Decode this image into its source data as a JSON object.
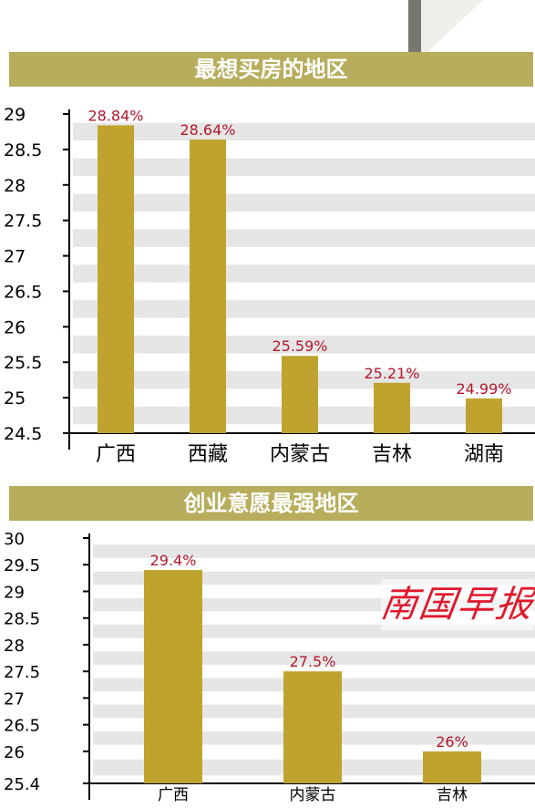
{
  "chart_data": [
    {
      "type": "bar",
      "title": "最想买房的地区",
      "categories": [
        "广西",
        "西藏",
        "内蒙古",
        "吉林",
        "湖南"
      ],
      "values": [
        28.84,
        28.64,
        25.59,
        25.21,
        24.99
      ],
      "value_labels": [
        "28.84%",
        "28.64%",
        "25.59%",
        "25.21%",
        "24.99%"
      ],
      "ylim": [
        24.5,
        29
      ],
      "yticks": [
        "24.5",
        "25",
        "25.5",
        "26",
        "26.5",
        "27",
        "27.5",
        "28",
        "28.5",
        "29"
      ],
      "grid": true,
      "bar_color": "#bfa32e",
      "label_color": "#b0182e"
    },
    {
      "type": "bar",
      "title": "创业意愿最强地区",
      "categories": [
        "广西",
        "内蒙古",
        "吉林"
      ],
      "values": [
        29.4,
        27.5,
        26
      ],
      "value_labels": [
        "29.4%",
        "27.5%",
        "26%"
      ],
      "ylim": [
        25.4,
        30
      ],
      "yticks": [
        "25.4",
        "26",
        "26.5",
        "27",
        "27.5",
        "28",
        "28.5",
        "29",
        "29.5",
        "30"
      ],
      "grid": true,
      "bar_color": "#bfa32e",
      "label_color": "#b0182e"
    }
  ],
  "banners": {
    "banner1": "最想买房的地区",
    "banner2": "创业意愿最强地区"
  },
  "watermark": "南国早报",
  "colors": {
    "banner_bg": "#b7ad5c",
    "grid_band": "#e6e6e6",
    "watermark": "#e0182d"
  }
}
